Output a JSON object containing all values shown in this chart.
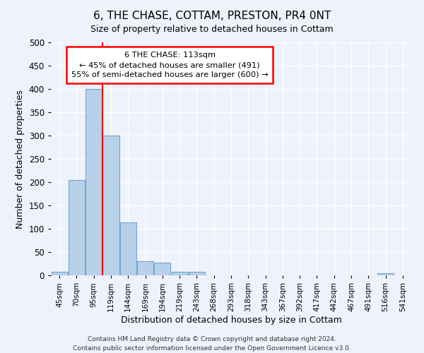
{
  "title": "6, THE CHASE, COTTAM, PRESTON, PR4 0NT",
  "subtitle": "Size of property relative to detached houses in Cottam",
  "xlabel": "Distribution of detached houses by size in Cottam",
  "ylabel": "Number of detached properties",
  "bar_color": "#b8d0e8",
  "bar_edge_color": "#6aaad4",
  "categories": [
    "45sqm",
    "70sqm",
    "95sqm",
    "119sqm",
    "144sqm",
    "169sqm",
    "194sqm",
    "219sqm",
    "243sqm",
    "268sqm",
    "293sqm",
    "318sqm",
    "343sqm",
    "367sqm",
    "392sqm",
    "417sqm",
    "442sqm",
    "467sqm",
    "491sqm",
    "516sqm",
    "541sqm"
  ],
  "values": [
    8,
    205,
    400,
    300,
    113,
    30,
    27,
    8,
    7,
    0,
    0,
    0,
    0,
    0,
    0,
    0,
    0,
    0,
    0,
    5,
    0
  ],
  "red_line_index": 3,
  "annotation_title": "6 THE CHASE: 113sqm",
  "annotation_line1": "← 45% of detached houses are smaller (491)",
  "annotation_line2": "55% of semi-detached houses are larger (600) →",
  "ylim": [
    0,
    500
  ],
  "yticks": [
    0,
    50,
    100,
    150,
    200,
    250,
    300,
    350,
    400,
    450,
    500
  ],
  "background_color": "#eef2fb",
  "grid_color": "#ffffff",
  "footer1": "Contains HM Land Registry data © Crown copyright and database right 2024.",
  "footer2": "Contains public sector information licensed under the Open Government Licence v3.0."
}
